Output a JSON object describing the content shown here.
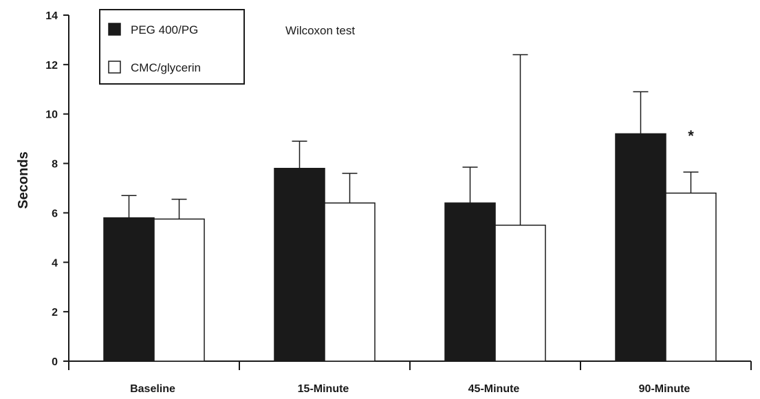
{
  "chart_data": {
    "type": "bar",
    "categories": [
      "Baseline",
      "15-Minute",
      "45-Minute",
      "90-Minute"
    ],
    "series": [
      {
        "name": "PEG 400/PG",
        "values": [
          5.8,
          7.8,
          6.4,
          9.2
        ],
        "error_upper": [
          6.7,
          8.9,
          7.85,
          10.9
        ],
        "color": "#1a1a1a"
      },
      {
        "name": "CMC/glycerin",
        "values": [
          5.75,
          6.4,
          5.5,
          6.8
        ],
        "error_upper": [
          6.55,
          7.6,
          12.4,
          7.65
        ],
        "color": "#ffffff"
      }
    ],
    "ylabel": "Seconds",
    "xlabel": "",
    "ylim": [
      0,
      14
    ],
    "yticks": [
      "0",
      "2",
      "4",
      "6",
      "8",
      "10",
      "12",
      "14"
    ],
    "legend_position": "top-left",
    "annotation": "Wilcoxon test",
    "significance_marker": {
      "symbol": "*",
      "category": "90-Minute",
      "series": "CMC/glycerin"
    },
    "grid": false
  }
}
